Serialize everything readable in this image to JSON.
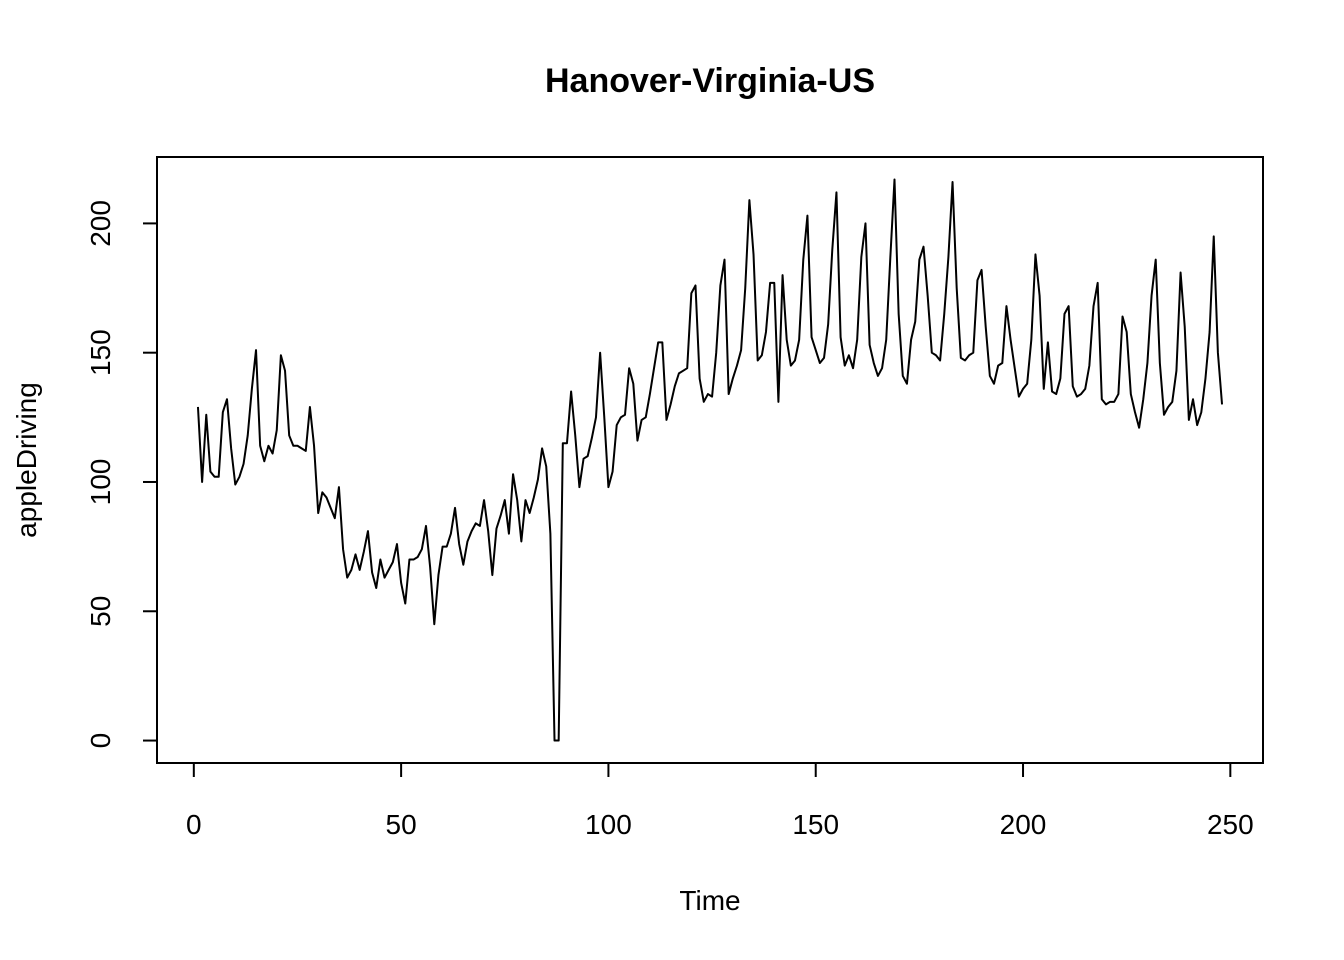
{
  "chart_data": {
    "type": "line",
    "title": "Hanover-Virginia-US",
    "x_label": "Time",
    "y_label": "appleDriving",
    "x": [
      1,
      2,
      3,
      4,
      5,
      6,
      7,
      8,
      9,
      10,
      11,
      12,
      13,
      14,
      15,
      16,
      17,
      18,
      19,
      20,
      21,
      22,
      23,
      24,
      25,
      26,
      27,
      28,
      29,
      30,
      31,
      32,
      33,
      34,
      35,
      36,
      37,
      38,
      39,
      40,
      41,
      42,
      43,
      44,
      45,
      46,
      47,
      48,
      49,
      50,
      51,
      52,
      53,
      54,
      55,
      56,
      57,
      58,
      59,
      60,
      61,
      62,
      63,
      64,
      65,
      66,
      67,
      68,
      69,
      70,
      71,
      72,
      73,
      74,
      75,
      76,
      77,
      78,
      79,
      80,
      81,
      82,
      83,
      84,
      85,
      86,
      87,
      88,
      89,
      90,
      91,
      92,
      93,
      94,
      95,
      96,
      97,
      98,
      99,
      100,
      101,
      102,
      103,
      104,
      105,
      106,
      107,
      108,
      109,
      110,
      111,
      112,
      113,
      114,
      115,
      116,
      117,
      118,
      119,
      120,
      121,
      122,
      123,
      124,
      125,
      126,
      127,
      128,
      129,
      130,
      131,
      132,
      133,
      134,
      135,
      136,
      137,
      138,
      139,
      140,
      141,
      142,
      143,
      144,
      145,
      146,
      147,
      148,
      149,
      150,
      151,
      152,
      153,
      154,
      155,
      156,
      157,
      158,
      159,
      160,
      161,
      162,
      163,
      164,
      165,
      166,
      167,
      168,
      169,
      170,
      171,
      172,
      173,
      174,
      175,
      176,
      177,
      178,
      179,
      180,
      181,
      182,
      183,
      184,
      185,
      186,
      187,
      188,
      189,
      190,
      191,
      192,
      193,
      194,
      195,
      196,
      197,
      198,
      199,
      200,
      201,
      202,
      203,
      204,
      205,
      206,
      207,
      208,
      209,
      210,
      211,
      212,
      213,
      214,
      215,
      216,
      217,
      218,
      219,
      220,
      221,
      222,
      223,
      224,
      225,
      226,
      227,
      228,
      229,
      230,
      231,
      232,
      233,
      234,
      235,
      236,
      237,
      238,
      239,
      240,
      241,
      242,
      243,
      244,
      245,
      246,
      247,
      248
    ],
    "series": [
      {
        "color": "#000000",
        "values": [
          129,
          100,
          126,
          104,
          102,
          102,
          127,
          132,
          113,
          99,
          102,
          107,
          118,
          136,
          151,
          114,
          108,
          114,
          111,
          120,
          149,
          143,
          118,
          114,
          114,
          113,
          112,
          129,
          114,
          88,
          96,
          94,
          90,
          86,
          98,
          74,
          63,
          66,
          72,
          66,
          73,
          81,
          65,
          59,
          70,
          63,
          66,
          69,
          76,
          61,
          53,
          70,
          70,
          71,
          74,
          83,
          67,
          45,
          64,
          75,
          75,
          80,
          90,
          76,
          68,
          77,
          81,
          84,
          83,
          93,
          81,
          64,
          82,
          87,
          93,
          80,
          103,
          93,
          77,
          93,
          88,
          94,
          101,
          113,
          106,
          80,
          0,
          0,
          115,
          115,
          135,
          118,
          98,
          109,
          110,
          117,
          125,
          150,
          125,
          98,
          104,
          122,
          125,
          126,
          144,
          138,
          116,
          124,
          125,
          134,
          144,
          154,
          154,
          124,
          130,
          137,
          142,
          143,
          144,
          173,
          176,
          140,
          131,
          134,
          133,
          150,
          176,
          186,
          134,
          140,
          145,
          151,
          175,
          209,
          188,
          147,
          149,
          158,
          177,
          177,
          131,
          180,
          155,
          145,
          147,
          155,
          186,
          203,
          156,
          151,
          146,
          148,
          161,
          190,
          212,
          156,
          145,
          149,
          144,
          155,
          187,
          200,
          153,
          146,
          141,
          144,
          155,
          187,
          217,
          165,
          141,
          138,
          155,
          162,
          186,
          191,
          172,
          150,
          149,
          147,
          165,
          187,
          216,
          175,
          148,
          147,
          149,
          150,
          178,
          182,
          160,
          141,
          138,
          145,
          146,
          168,
          155,
          144,
          133,
          136,
          138,
          155,
          188,
          172,
          136,
          154,
          135,
          134,
          140,
          165,
          168,
          137,
          133,
          134,
          136,
          145,
          168,
          177,
          132,
          130,
          131,
          131,
          134,
          164,
          158,
          134,
          127,
          121,
          132,
          146,
          172,
          186,
          146,
          126,
          129,
          131,
          143,
          181,
          160,
          124,
          132,
          122,
          127,
          140,
          158,
          195,
          150,
          130
        ]
      }
    ],
    "xlim": [
      -8.88,
      257.88
    ],
    "ylim": [
      -8.68,
      225.68
    ],
    "xticks": [
      0,
      50,
      100,
      150,
      200,
      250
    ],
    "yticks": [
      0,
      50,
      100,
      150,
      200
    ]
  }
}
